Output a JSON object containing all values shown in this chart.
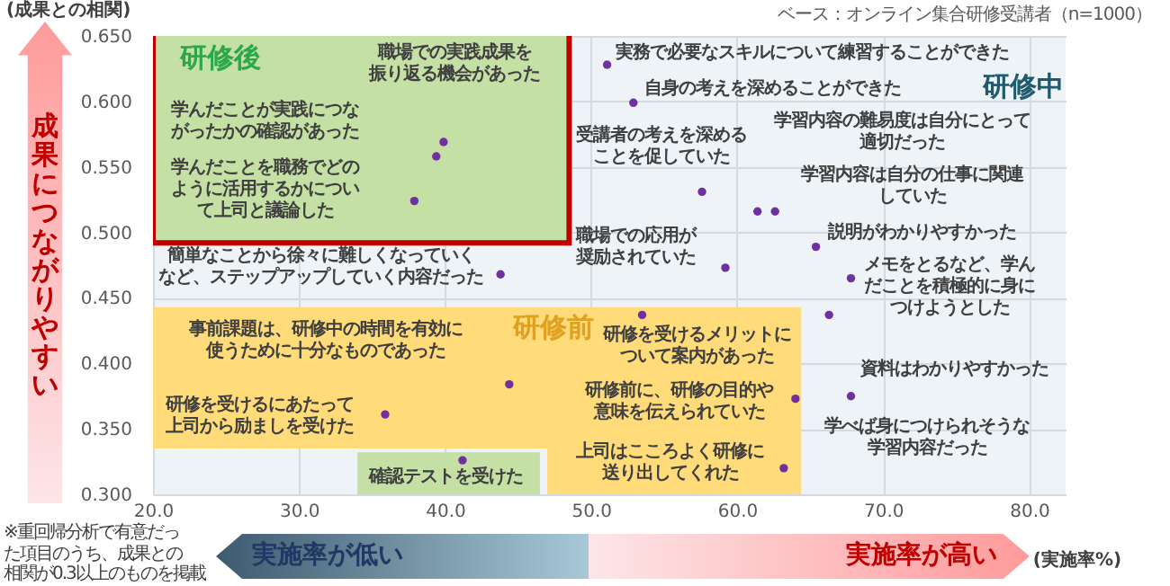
{
  "chart_data": {
    "type": "scatter",
    "xlabel": "(実施率%)",
    "ylabel": "(成果との相関)",
    "xlim": [
      20,
      82.5
    ],
    "ylim": [
      0.3,
      0.65
    ],
    "xticks": [
      {
        "value": 20,
        "label": "20.0"
      },
      {
        "value": 30,
        "label": "30.0"
      },
      {
        "value": 40,
        "label": "40.0"
      },
      {
        "value": 50,
        "label": "50.0"
      },
      {
        "value": 60,
        "label": "60.0"
      },
      {
        "value": 70,
        "label": "70.0"
      },
      {
        "value": 80,
        "label": "80.0"
      }
    ],
    "yticks": [
      {
        "value": 0.3,
        "label": "0.300"
      },
      {
        "value": 0.35,
        "label": "0.350"
      },
      {
        "value": 0.4,
        "label": "0.400"
      },
      {
        "value": 0.45,
        "label": "0.450"
      },
      {
        "value": 0.5,
        "label": "0.500"
      },
      {
        "value": 0.55,
        "label": "0.550"
      },
      {
        "value": 0.6,
        "label": "0.600"
      },
      {
        "value": 0.65,
        "label": "0.650"
      }
    ],
    "grid": true,
    "marker": "circle",
    "series": [
      {
        "color": "#7030a0",
        "x": [
          39.4,
          39.9,
          37.9,
          43.8,
          51.1,
          52.9,
          57.6,
          61.4,
          62.6,
          65.4,
          59.2,
          67.8,
          66.3,
          67.8,
          53.5,
          64.0,
          63.2,
          44.4,
          35.9,
          41.2
        ],
        "values": [
          0.558,
          0.569,
          0.524,
          0.468,
          0.628,
          0.599,
          0.531,
          0.516,
          0.516,
          0.489,
          0.473,
          0.465,
          0.437,
          0.375,
          0.437,
          0.373,
          0.32,
          0.384,
          0.361,
          0.326
        ]
      }
    ],
    "annotations": [
      "研修後",
      "研修中",
      "研修前",
      "学んだことが実践につながったかの確認があった",
      "職場での実践成果を振り返る機会があった",
      "学んだことを職務でどのように活用するかについて上司と議論した",
      "簡単なことから徐々に難しくなっていくなど、ステップアップしていく内容だった",
      "実務で必要なスキルについて練習することができた",
      "自身の考えを深めることができた",
      "受講者の考えを深めることを促していた",
      "学習内容の難易度は自分にとって適切だった",
      "学習内容は自分の仕事に関連していた",
      "説明がわかりやすかった",
      "職場での応用が奨励されていた",
      "メモをとるなど、学んだことを積極的に身につけようとした",
      "資料はわかりやすかった",
      "学べば身につけられそうな学習内容だった",
      "研修を受けるメリットについて案内があった",
      "研修前に、研修の目的や意味を伝えられていた",
      "上司はこころよく研修に送り出してくれた",
      "事前課題は、研修中の時間を有効に使うために十分なものであった",
      "研修を受けるにあたって上司から励ましを受けた",
      "確認テストを受けた",
      "ベース：オンライン集合研修受講者（n=1000）",
      "※重回帰分析で有意だった項目のうち、成果との相関が0.3以上のものを掲載",
      "成果につながりやすい",
      "実施率が低い",
      "実施率が高い"
    ]
  }
}
